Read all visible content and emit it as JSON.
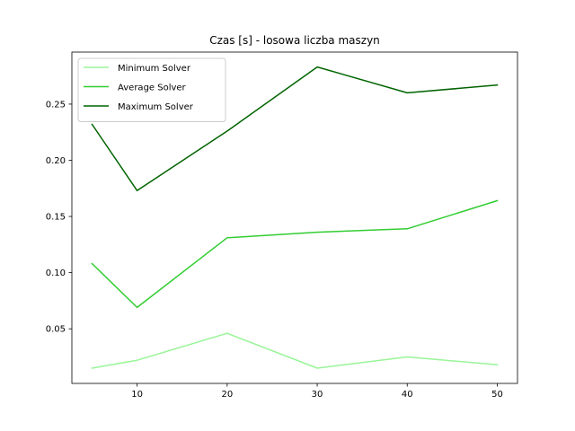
{
  "chart_data": {
    "type": "line",
    "title": "Czas [s] - losowa liczba maszyn",
    "xlabel": "",
    "ylabel": "",
    "x": [
      5,
      10,
      20,
      30,
      40,
      50
    ],
    "xlim": [
      2.75,
      52.25
    ],
    "ylim": [
      0.0014,
      0.2963
    ],
    "xticks": [
      10,
      20,
      30,
      40,
      50
    ],
    "yticks": [
      0.05,
      0.1,
      0.15,
      0.2,
      0.25
    ],
    "ytick_labels": [
      "0.05",
      "0.10",
      "0.15",
      "0.20",
      "0.25"
    ],
    "grid": false,
    "legend_position": "top-left",
    "series": [
      {
        "name": "Minimum Solver",
        "color": "#98f598",
        "values": [
          0.015,
          0.022,
          0.046,
          0.015,
          0.025,
          0.018
        ]
      },
      {
        "name": "Average Solver",
        "color": "#32cd32",
        "values": [
          0.108,
          0.069,
          0.131,
          0.136,
          0.139,
          0.164
        ]
      },
      {
        "name": "Maximum Solver",
        "color": "#006400",
        "values": [
          0.232,
          0.173,
          0.226,
          0.283,
          0.26,
          0.267
        ]
      }
    ]
  }
}
